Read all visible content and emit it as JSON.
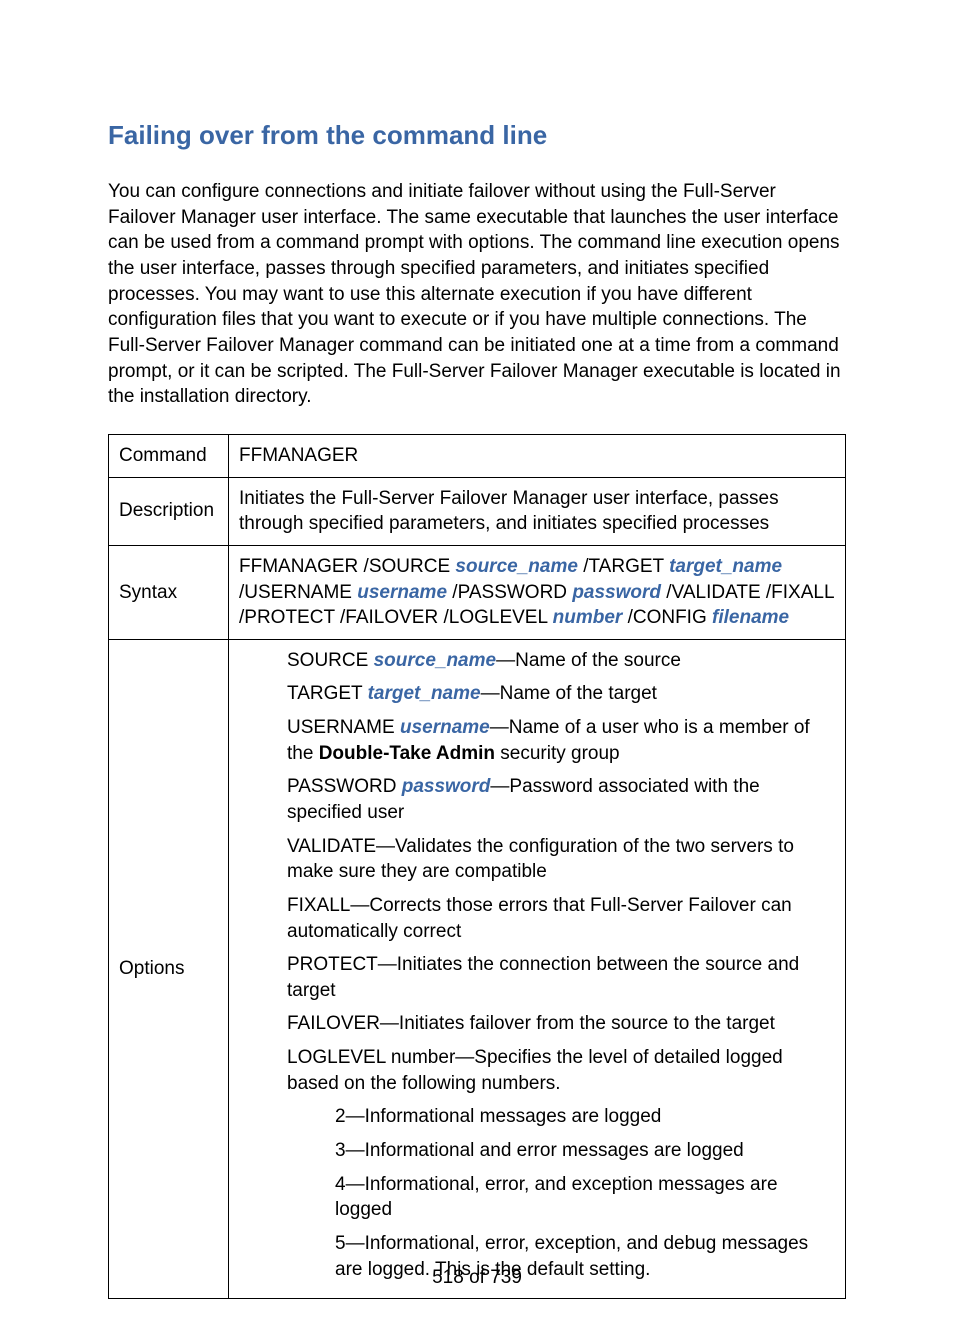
{
  "colors": {
    "heading": "#3a66a4",
    "text": "#000000",
    "param": "#3a66a4",
    "border": "#000000",
    "background": "#ffffff"
  },
  "fonts": {
    "body_pt": 14,
    "heading_pt": 20
  },
  "heading": "Failing over from the command line",
  "intro": "You can configure connections and initiate failover without using the Full-Server Failover Manager user interface. The same executable that launches the user interface can be used from a command prompt with options. The command line execution opens the user interface, passes through specified parameters, and initiates specified processes. You may want to use this alternate execution if you have different configuration files that you want to execute or if you have multiple connections. The Full-Server Failover Manager command can be initiated one at a time from a command prompt, or it can be scripted. The Full-Server Failover Manager executable is located in the installation directory.",
  "table": {
    "rows": {
      "command": {
        "label": "Command",
        "value": "FFMANAGER"
      },
      "description": {
        "label": "Description",
        "value": "Initiates the Full-Server Failover Manager user interface, passes through specified parameters, and initiates specified processes"
      },
      "syntax": {
        "label": "Syntax",
        "t1": "FFMANAGER /SOURCE ",
        "p1": "source_name",
        "t2": " /TARGET ",
        "p2": "target_name",
        "t3": " /USERNAME ",
        "p3": "username",
        "t4": " /PASSWORD ",
        "p4": "password",
        "t5": " /VALIDATE /FIXALL /PROTECT /FAILOVER /LOGLEVEL ",
        "p5": "number",
        "t6": " /CONFIG ",
        "p6": "filename"
      },
      "options": {
        "label": "Options",
        "items": {
          "source": {
            "prefix": "SOURCE ",
            "param": "source_name",
            "desc": "—Name of the source"
          },
          "target": {
            "prefix": "TARGET ",
            "param": "target_name",
            "desc": "—Name of the target"
          },
          "username": {
            "prefix": "USERNAME ",
            "param": "username",
            "d1": "—Name of a user who is a member of the ",
            "bold": "Double-Take Admin",
            "d2": " security group"
          },
          "password": {
            "prefix": "PASSWORD ",
            "param": "password",
            "desc": "—Password associated with the specified user"
          },
          "validate": {
            "text": "VALIDATE—Validates the configuration of the two servers to make sure they are compatible"
          },
          "fixall": {
            "text": "FIXALL—Corrects those errors that Full-Server Failover can automatically correct"
          },
          "protect": {
            "text": "PROTECT—Initiates the connection between the source and target"
          },
          "failover": {
            "text": "FAILOVER—Initiates failover from the source to the target"
          },
          "loglevel": {
            "text": "LOGLEVEL number—Specifies the level of detailed logged based on the following numbers."
          },
          "lv2": {
            "text": "2—Informational messages are logged"
          },
          "lv3": {
            "text": "3—Informational and error messages are logged"
          },
          "lv4": {
            "text": "4—Informational, error, and exception messages are logged"
          },
          "lv5": {
            "text": "5—Informational, error, exception, and debug messages are logged. This is the default setting."
          }
        }
      }
    }
  },
  "page_number": "518 of 739"
}
